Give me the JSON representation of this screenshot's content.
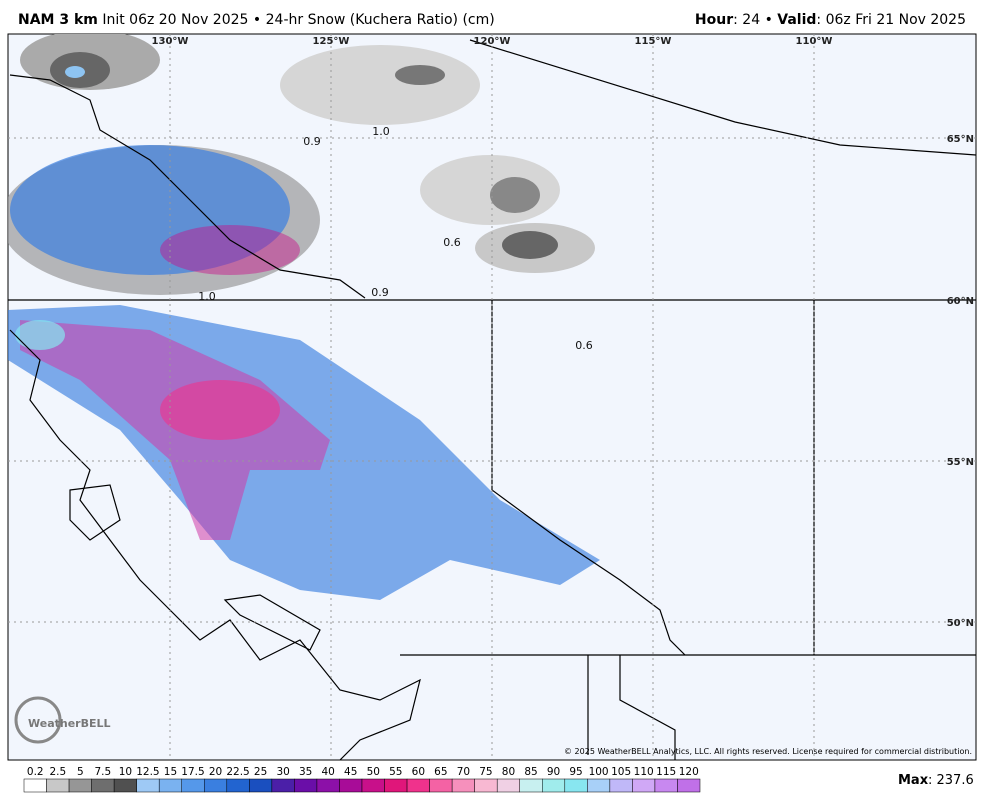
{
  "header": {
    "model": "NAM 3 km",
    "init": "Init 06z 20 Nov 2025",
    "separator": "•",
    "product": "24-hr Snow (Kuchera Ratio) (cm)",
    "hour_label": "Hour",
    "hour": ": 24",
    "valid_label": "Valid",
    "valid": ": 06z Fri 21 Nov 2025"
  },
  "map": {
    "lon_labels": [
      "130°W",
      "125°W",
      "120°W",
      "115°W",
      "110°W"
    ],
    "lat_labels": [
      "65°N",
      "60°N",
      "55°N",
      "50°N"
    ],
    "point_labels": [
      "0.9",
      "1.0",
      "0.6",
      "0.9",
      "1.0",
      "0.6"
    ],
    "logo": "WeatherBELL",
    "copyright": "© 2025 WeatherBELL Analytics, LLC. All rights reserved. License required for commercial distribution."
  },
  "legend": {
    "ticks": [
      "0.2",
      "2.5",
      "5",
      "7.5",
      "10",
      "12.5",
      "15",
      "17.5",
      "20",
      "22.5",
      "25",
      "30",
      "35",
      "40",
      "45",
      "50",
      "55",
      "60",
      "65",
      "70",
      "75",
      "80",
      "85",
      "90",
      "95",
      "100",
      "105",
      "110",
      "115",
      "120"
    ],
    "colors": [
      "#ffffff",
      "#c8c8c8",
      "#969696",
      "#6e6e6e",
      "#505050",
      "#9ec9f5",
      "#7ab2f0",
      "#5598ea",
      "#3a7fe0",
      "#2264d0",
      "#1a4fbf",
      "#4b1fa8",
      "#6a0ea8",
      "#8c10a8",
      "#a80c98",
      "#c8108a",
      "#e0167a",
      "#f0328c",
      "#f462a4",
      "#f690bc",
      "#f8b8d2",
      "#f0d0e4",
      "#c8f0f0",
      "#a0ecec",
      "#88e6f0",
      "#a8d0f8",
      "#c0b8f8",
      "#d0a8f6",
      "#c888f0",
      "#c070e8"
    ],
    "max_label": "Max",
    "max": ": 237.6"
  }
}
